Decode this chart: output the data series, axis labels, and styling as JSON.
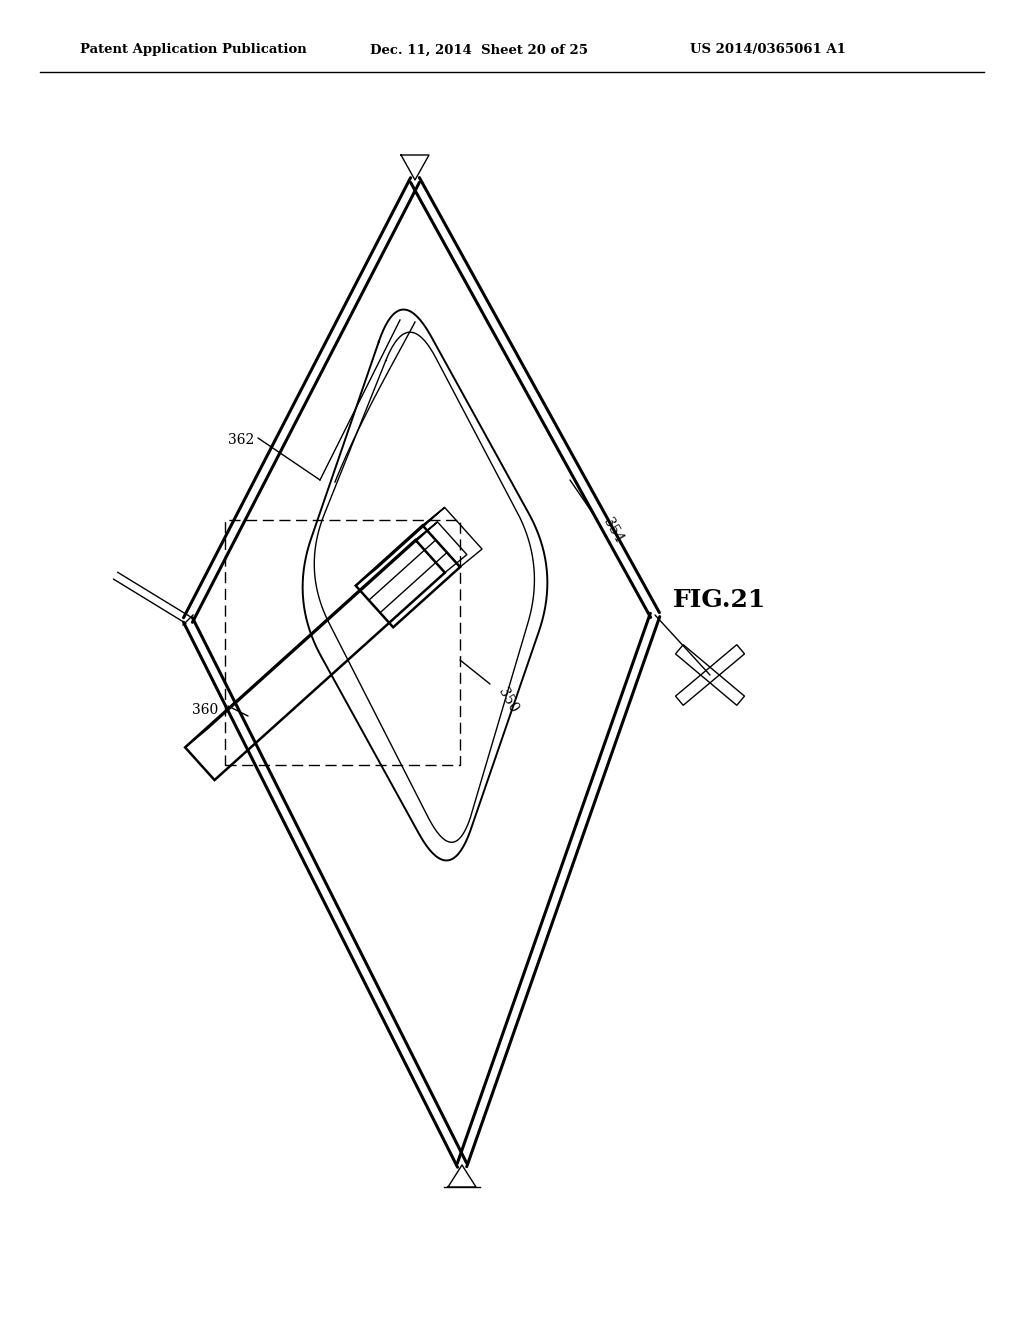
{
  "background_color": "#ffffff",
  "header_left": "Patent Application Publication",
  "header_mid": "Dec. 11, 2014  Sheet 20 of 25",
  "header_right": "US 2014/0365061 A1",
  "fig_label": "FIG.21",
  "lw_outer": 2.2,
  "lw_inner": 1.4,
  "lw_thin": 1.0,
  "lw_camera": 1.8
}
